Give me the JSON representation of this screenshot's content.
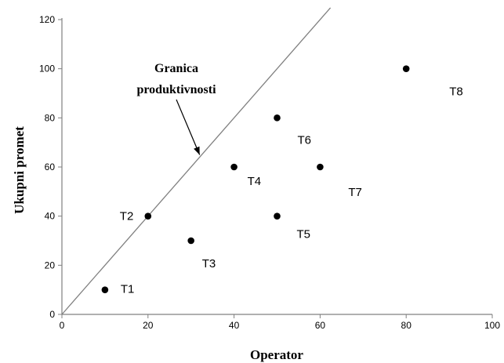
{
  "chart_data": {
    "type": "scatter",
    "xlabel": "Operator",
    "ylabel": "Ukupni promet",
    "xlim": [
      0,
      100
    ],
    "ylim": [
      0,
      120
    ],
    "x_ticks": [
      "0",
      "20",
      "40",
      "60",
      "80",
      "100"
    ],
    "y_ticks": [
      "0",
      "20",
      "40",
      "60",
      "80",
      "100",
      "120"
    ],
    "grid": false,
    "legend": "none",
    "points": [
      {
        "label": "T1",
        "x": 10,
        "y": 10
      },
      {
        "label": "T2",
        "x": 20,
        "y": 40
      },
      {
        "label": "T3",
        "x": 30,
        "y": 30
      },
      {
        "label": "T4",
        "x": 40,
        "y": 60
      },
      {
        "label": "T5",
        "x": 50,
        "y": 40
      },
      {
        "label": "T6",
        "x": 50,
        "y": 80
      },
      {
        "label": "T7",
        "x": 60,
        "y": 60
      },
      {
        "label": "T8",
        "x": 80,
        "y": 100
      }
    ],
    "frontier_line": {
      "from": [
        0,
        0
      ],
      "to": [
        62.4,
        124.8
      ]
    },
    "annotation": {
      "lines": [
        "Granica",
        "produktivnosti"
      ],
      "points_to": [
        32,
        64
      ]
    },
    "colors": {
      "marker": "#000000",
      "line": "#808080",
      "axis": "#808080"
    }
  }
}
